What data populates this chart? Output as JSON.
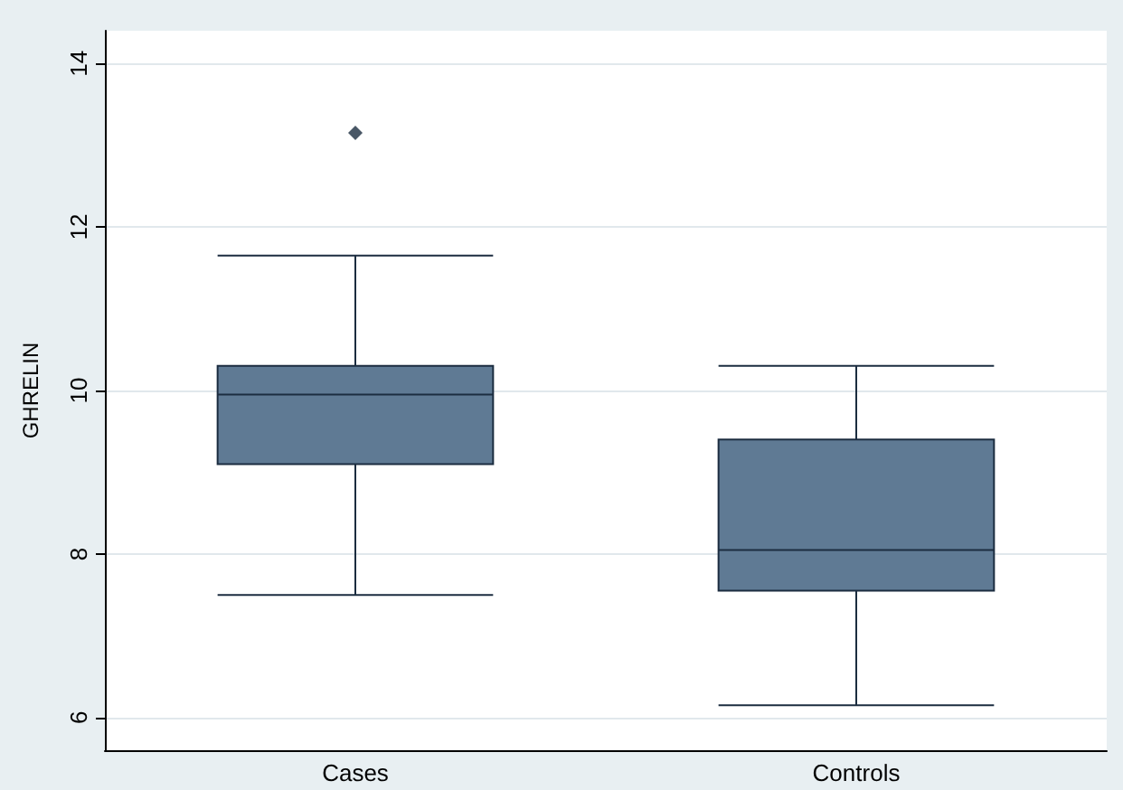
{
  "chart_data": {
    "type": "box",
    "ylabel": "GHRELIN",
    "categories": [
      "Cases",
      "Controls"
    ],
    "color": "#5f7a94",
    "boxes": [
      {
        "low": 7.5,
        "q1": 9.1,
        "median": 9.95,
        "q3": 10.3,
        "high": 11.65,
        "outliers": [
          13.15
        ]
      },
      {
        "low": 6.15,
        "q1": 7.55,
        "median": 8.05,
        "q3": 9.4,
        "high": 10.3
      }
    ],
    "ylim": [
      5.6,
      14.4
    ],
    "yticks": [
      6,
      8,
      10,
      12,
      14
    ],
    "grid": "y",
    "marker": "diamond"
  }
}
